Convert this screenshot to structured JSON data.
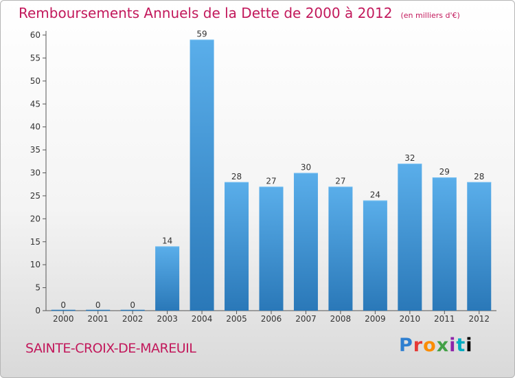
{
  "header": {
    "title": "Remboursements Annuels de la Dette de 2000 à 2012",
    "subtitle": "(en milliers d'€)"
  },
  "footer": {
    "commune": "SAINTE-CROIX-DE-MAREUIL",
    "logo_letters": [
      "P",
      "r",
      "o",
      "x",
      "i",
      "t",
      "i"
    ]
  },
  "colors": {
    "accent": "#c2185b",
    "bar_top": "#5aaeea",
    "bar_bottom": "#2a78b8"
  },
  "chart_data": {
    "type": "bar",
    "categories": [
      "2000",
      "2001",
      "2002",
      "2003",
      "2004",
      "2005",
      "2006",
      "2007",
      "2008",
      "2009",
      "2010",
      "2011",
      "2012"
    ],
    "values": [
      0,
      0,
      0,
      14,
      59,
      28,
      27,
      30,
      27,
      24,
      32,
      29,
      28
    ],
    "title": "Remboursements Annuels de la Dette de 2000 à 2012",
    "ylim": [
      0,
      60
    ],
    "yticks": [
      0,
      5,
      10,
      15,
      20,
      25,
      30,
      35,
      40,
      45,
      50,
      55,
      60
    ],
    "grid": false
  }
}
